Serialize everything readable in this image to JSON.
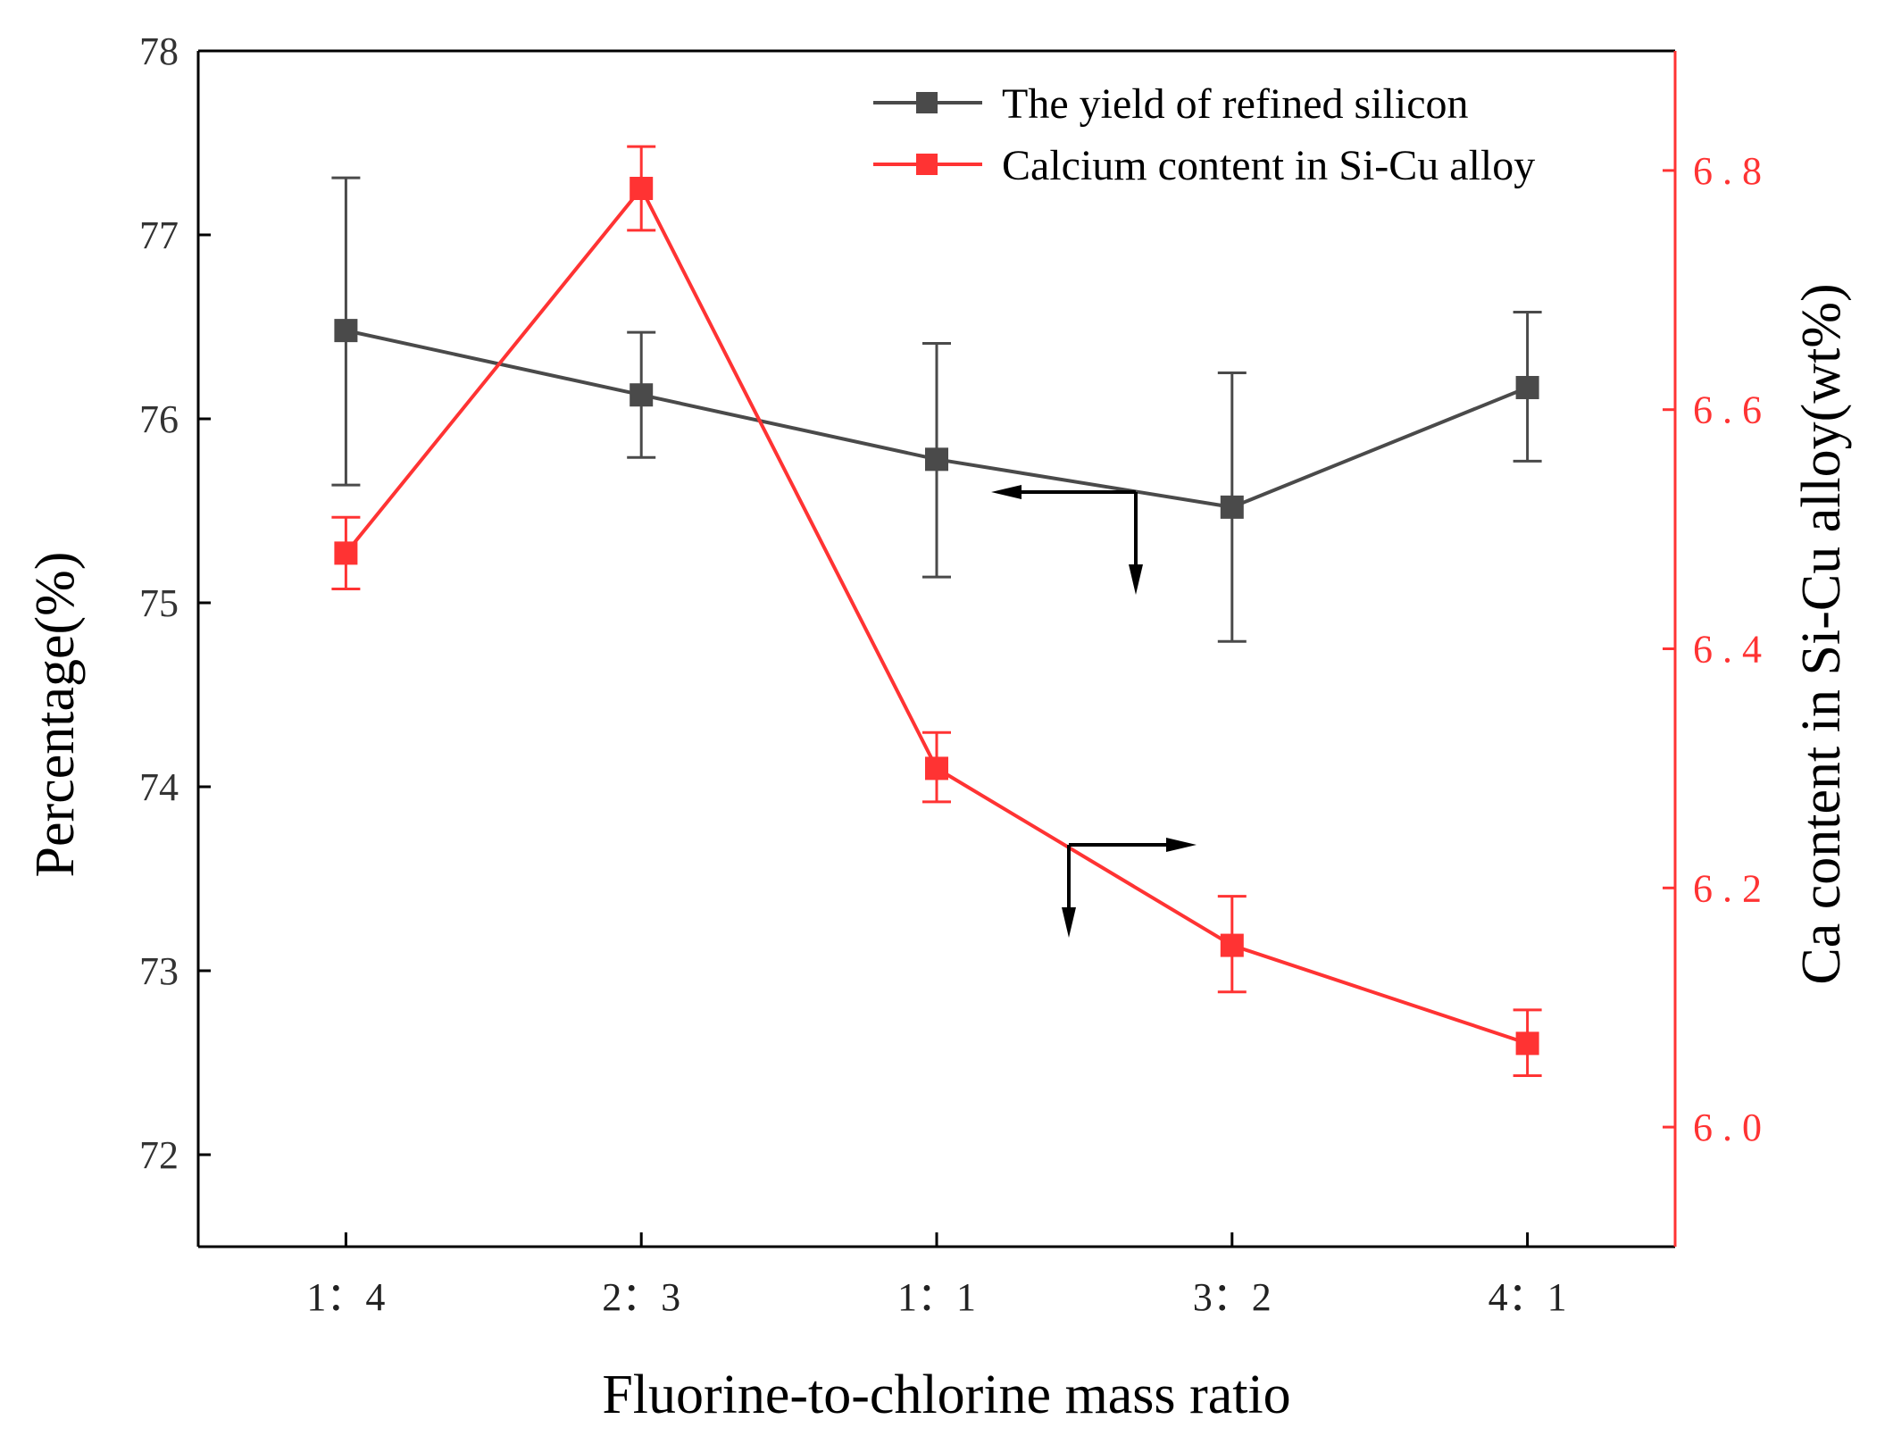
{
  "chart_data": {
    "type": "line",
    "categories": [
      "1：4",
      "2：3",
      "1：1",
      "3：2",
      "4：1"
    ],
    "xlabel": "Fluorine-to-chlorine mass ratio",
    "ylabel_left": "Percentage(%)",
    "ylabel_right": "Ca content in Si-Cu alloy(wt%)",
    "ylim_left": [
      71.5,
      78
    ],
    "ylim_right": [
      5.9,
      6.9
    ],
    "yticks_left": [
      "72",
      "73",
      "74",
      "75",
      "76",
      "77",
      "78"
    ],
    "yticks_right": [
      "6.0",
      "6.2",
      "6.4",
      "6.6",
      "6.8"
    ],
    "grid": false,
    "legend_position": "top-right",
    "series": [
      {
        "name": "The yield of refined silicon",
        "axis": "left",
        "color": "#4a4a4a",
        "values": [
          76.48,
          76.13,
          75.78,
          75.52,
          76.17
        ],
        "error_upper": [
          77.31,
          76.47,
          76.41,
          76.25,
          76.58
        ],
        "error_lower": [
          75.64,
          75.79,
          75.14,
          74.79,
          75.77
        ]
      },
      {
        "name": "Calcium content in Si-Cu alloy",
        "axis": "right",
        "color": "#ff3333",
        "values": [
          6.48,
          6.785,
          6.3,
          6.152,
          6.07
        ],
        "error_upper": [
          6.51,
          6.82,
          6.33,
          6.193,
          6.098
        ],
        "error_lower": [
          6.45,
          6.75,
          6.272,
          6.113,
          6.043
        ]
      }
    ],
    "annotations": [
      {
        "type": "arrow-indicator",
        "points_to": "left"
      },
      {
        "type": "arrow-indicator",
        "points_to": "right"
      }
    ]
  }
}
